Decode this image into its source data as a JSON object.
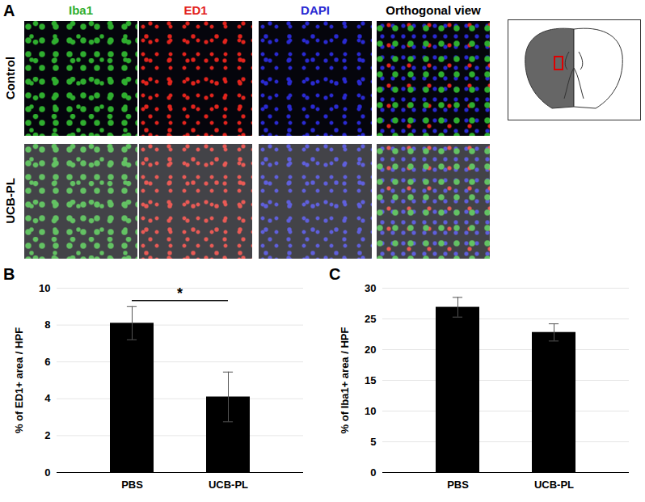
{
  "panel_a": {
    "label": "A",
    "columns": [
      {
        "name": "Iba1",
        "color": "#2fae2f"
      },
      {
        "name": "ED1",
        "color": "#e3241d"
      },
      {
        "name": "DAPI",
        "color": "#2a2ad2"
      },
      {
        "name": "Orthogonal view",
        "color": "#000000"
      }
    ],
    "rows": [
      "Control",
      "UCB-PL"
    ]
  },
  "chart_data": [
    {
      "type": "bar",
      "panel": "B",
      "categories": [
        "PBS",
        "UCB-PL"
      ],
      "values": [
        8.1,
        4.1
      ],
      "error": [
        0.9,
        1.35
      ],
      "color": "#000000",
      "y_label": "% of ED1+ area / HPF",
      "ylim": [
        0,
        10
      ],
      "yticks": [
        0,
        2,
        4,
        6,
        8,
        10
      ],
      "grid": true,
      "significance": {
        "from": "PBS",
        "to": "UCB-PL",
        "text": "*"
      }
    },
    {
      "type": "bar",
      "panel": "C",
      "categories": [
        "PBS",
        "UCB-PL"
      ],
      "values": [
        26.9,
        22.8
      ],
      "error": [
        1.6,
        1.4
      ],
      "color": "#000000",
      "y_label": "% of Iba1+ area / HPF",
      "ylim": [
        0,
        30
      ],
      "yticks": [
        0,
        5,
        10,
        15,
        20,
        25,
        30
      ],
      "grid": true
    }
  ]
}
